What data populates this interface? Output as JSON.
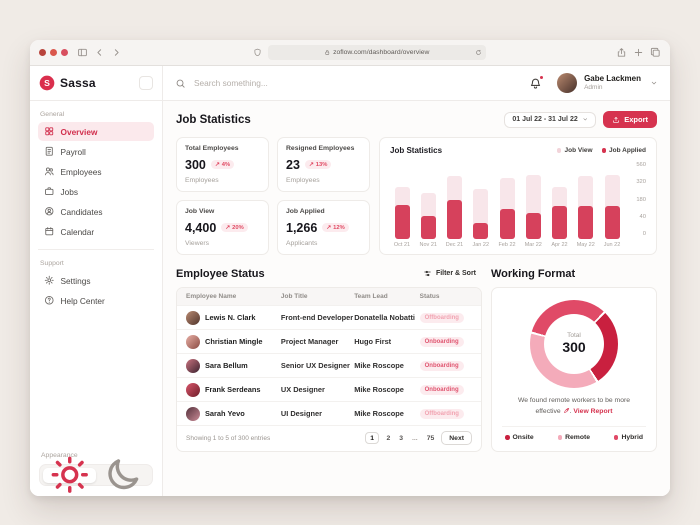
{
  "browser": {
    "url": "zoflow.com/dashboard/overview"
  },
  "brand": {
    "name": "Sassa"
  },
  "colors": {
    "accent": "#d6334f",
    "badge_bg": "#fcebee",
    "onboarding_text": "#e05570",
    "offboarding_text": "#f1a3b1",
    "sidebar_active_bg": "#fbe9ec"
  },
  "header": {
    "search_placeholder": "Search something...",
    "user": {
      "name": "Gabe Lackmen",
      "role": "Admin"
    }
  },
  "sidebar": {
    "sections": [
      {
        "label": "General",
        "items": [
          {
            "label": "Overview",
            "icon": "overview-icon",
            "active": true
          },
          {
            "label": "Payroll",
            "icon": "payroll-icon",
            "active": false
          },
          {
            "label": "Employees",
            "icon": "employees-icon",
            "active": false
          },
          {
            "label": "Jobs",
            "icon": "jobs-icon",
            "active": false
          },
          {
            "label": "Candidates",
            "icon": "candidates-icon",
            "active": false
          },
          {
            "label": "Calendar",
            "icon": "calendar-icon",
            "active": false
          }
        ]
      },
      {
        "label": "Support",
        "items": [
          {
            "label": "Settings",
            "icon": "settings-icon",
            "active": false
          },
          {
            "label": "Help Center",
            "icon": "help-icon",
            "active": false
          }
        ]
      }
    ],
    "appearance_label": "Appearance",
    "theme": {
      "light_active": true
    }
  },
  "job_statistics": {
    "title": "Job Statistics",
    "date_range": "01 Jul 22 - 31 Jul 22",
    "export_label": "Export",
    "trend_up_glyph": "↗",
    "stats": [
      {
        "title": "Total Employees",
        "value": "300",
        "delta": "4%",
        "trend": "up",
        "sub": "Employees"
      },
      {
        "title": "Resigned Employees",
        "value": "23",
        "delta": "13%",
        "trend": "up",
        "sub": "Employees"
      },
      {
        "title": "Job View",
        "value": "4,400",
        "delta": "20%",
        "trend": "up",
        "sub": "Viewers"
      },
      {
        "title": "Job Applied",
        "value": "1,266",
        "delta": "12%",
        "trend": "up",
        "sub": "Applicants"
      }
    ]
  },
  "chart_data": [
    {
      "type": "bar",
      "title": "Job Statistics",
      "categories": [
        "Oct 21",
        "Nov 21",
        "Dec 21",
        "Jan 22",
        "Feb 22",
        "Mar 22",
        "Apr 22",
        "May 22",
        "Jun 22"
      ],
      "series": [
        {
          "name": "Job View",
          "color": "#f8e6ea",
          "legend_color": "#f2d4da",
          "values": [
            430,
            380,
            520,
            410,
            500,
            530,
            430,
            520,
            530
          ]
        },
        {
          "name": "Job Applied",
          "color": "#d6415c",
          "legend_color": "#d6334f",
          "values": [
            280,
            190,
            320,
            130,
            245,
            210,
            275,
            275,
            275
          ]
        }
      ],
      "xlabel": "",
      "ylabel": "",
      "ylim": [
        0,
        560
      ],
      "y_tick_labels": [
        "560",
        "320",
        "180",
        "40",
        "0"
      ],
      "legend_position": "top-right",
      "grid": false
    },
    {
      "type": "pie",
      "donut": true,
      "title": "Working Format",
      "total_label": "Total",
      "total": 300,
      "start_angle_deg": 285,
      "segments": [
        {
          "label": "Hybrid",
          "value": 99,
          "color": "#e04a67"
        },
        {
          "label": "Onsite",
          "value": 87,
          "color": "#c9203f"
        },
        {
          "label": "Remote",
          "value": 114,
          "color": "#f4abba"
        }
      ]
    }
  ],
  "employee_status": {
    "title": "Employee Status",
    "filter_label": "Filter & Sort",
    "columns": [
      "Employee Name",
      "Job Title",
      "Team Lead",
      "Status"
    ],
    "rows": [
      {
        "name": "Lewis N. Clark",
        "job": "Front-end Developer",
        "lead": "Donatella Nobatti",
        "status": "Offboarding",
        "avatar": [
          "#b98a72",
          "#50342b"
        ]
      },
      {
        "name": "Christian Mingle",
        "job": "Project Manager",
        "lead": "Hugo First",
        "status": "Onboarding",
        "avatar": [
          "#e8b0a6",
          "#8a4a42"
        ]
      },
      {
        "name": "Sara Bellum",
        "job": "Senior UX Designer",
        "lead": "Mike Roscope",
        "status": "Onboarding",
        "avatar": [
          "#c9737f",
          "#3c2330"
        ]
      },
      {
        "name": "Frank Serdeans",
        "job": "UX Designer",
        "lead": "Mike Roscope",
        "status": "Onboarding",
        "avatar": [
          "#d9556b",
          "#6e1f2a"
        ]
      },
      {
        "name": "Sarah Yevo",
        "job": "UI Designer",
        "lead": "Mike Roscope",
        "status": "Offboarding",
        "avatar": [
          "#55323c",
          "#c98a96"
        ]
      }
    ],
    "footer": {
      "showing": "Showing 1 to 5 of 300 entries",
      "pages": [
        "1",
        "2",
        "3",
        "...",
        "75"
      ],
      "active_page": "1",
      "next_label": "Next"
    }
  },
  "working_format": {
    "title": "Working Format",
    "center_label": "Total",
    "center_value": "300",
    "note": "We found remote workers to be more effective",
    "note_suffix": ". ",
    "link_label": "View Report",
    "legend": [
      {
        "label": "Onsite",
        "color": "#c9203f"
      },
      {
        "label": "Remote",
        "color": "#f4abba"
      },
      {
        "label": "Hybrid",
        "color": "#e04a67"
      }
    ]
  }
}
